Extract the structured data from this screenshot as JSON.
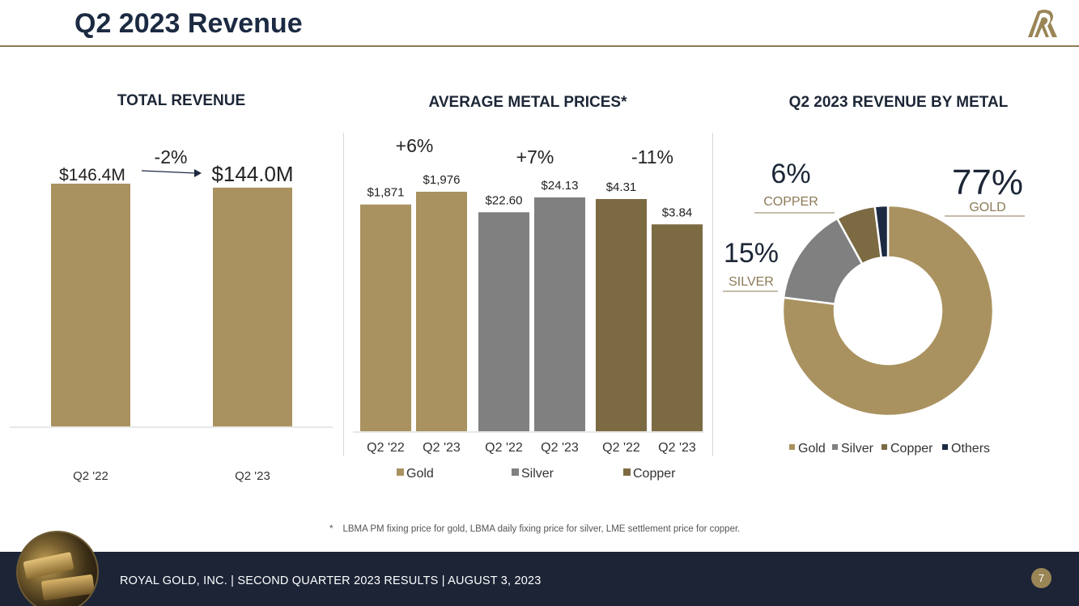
{
  "slide": {
    "title": "Q2 2023 Revenue",
    "footnote_star": "*",
    "footnote": "LBMA PM fixing price for gold, LBMA daily fixing price for silver, LME settlement price for copper.",
    "footer": "ROYAL GOLD, INC.   |   SECOND QUARTER 2023 RESULTS   |   AUGUST 3, 2023",
    "page_number": "7",
    "logo_icon": "royal-gold-logo-icon",
    "photo_icon": "gold-bars-photo-icon"
  },
  "colors": {
    "gold": "#a9925f",
    "silver": "#808080",
    "copper": "#7c6a43",
    "others": "#1c2a42",
    "title": "#1c2a42",
    "rule": "#8c7a57"
  },
  "chart_data": [
    {
      "type": "bar",
      "title": "TOTAL REVENUE",
      "categories": [
        "Q2 '22",
        "Q2 '23"
      ],
      "values": [
        146.4,
        144.0
      ],
      "data_labels": [
        "$146.4M",
        "$144.0M"
      ],
      "change_label": "-2%",
      "unit": "$M",
      "ylim": [
        0,
        146.4
      ]
    },
    {
      "type": "bar",
      "title": "AVERAGE METAL PRICES*",
      "groups": [
        {
          "name": "Gold",
          "categories": [
            "Q2 '22",
            "Q2 '23"
          ],
          "values": [
            1871,
            1976
          ],
          "data_labels": [
            "$1,871",
            "$1,976"
          ],
          "change_label": "+6%",
          "color_key": "gold"
        },
        {
          "name": "Silver",
          "categories": [
            "Q2 '22",
            "Q2 '23"
          ],
          "values": [
            22.6,
            24.13
          ],
          "data_labels": [
            "$22.60",
            "$24.13"
          ],
          "change_label": "+7%",
          "color_key": "silver"
        },
        {
          "name": "Copper",
          "categories": [
            "Q2 '22",
            "Q2 '23"
          ],
          "values": [
            4.31,
            3.84
          ],
          "data_labels": [
            "$4.31",
            "$3.84"
          ],
          "change_label": "-11%",
          "color_key": "copper"
        }
      ],
      "legend": [
        "Gold",
        "Silver",
        "Copper"
      ],
      "legend_position": "bottom"
    },
    {
      "type": "pie",
      "title": "Q2 2023 REVENUE BY METAL",
      "slices": [
        {
          "name": "Gold",
          "value": 77,
          "label": "77%",
          "caption": "GOLD",
          "color_key": "gold"
        },
        {
          "name": "Silver",
          "value": 15,
          "label": "15%",
          "caption": "SILVER",
          "color_key": "silver"
        },
        {
          "name": "Copper",
          "value": 6,
          "label": "6%",
          "caption": "COPPER",
          "color_key": "copper"
        },
        {
          "name": "Others",
          "value": 2,
          "label": "",
          "caption": "",
          "color_key": "others"
        }
      ],
      "legend": [
        "Gold",
        "Silver",
        "Copper",
        "Others"
      ],
      "legend_position": "bottom",
      "donut": true
    }
  ]
}
